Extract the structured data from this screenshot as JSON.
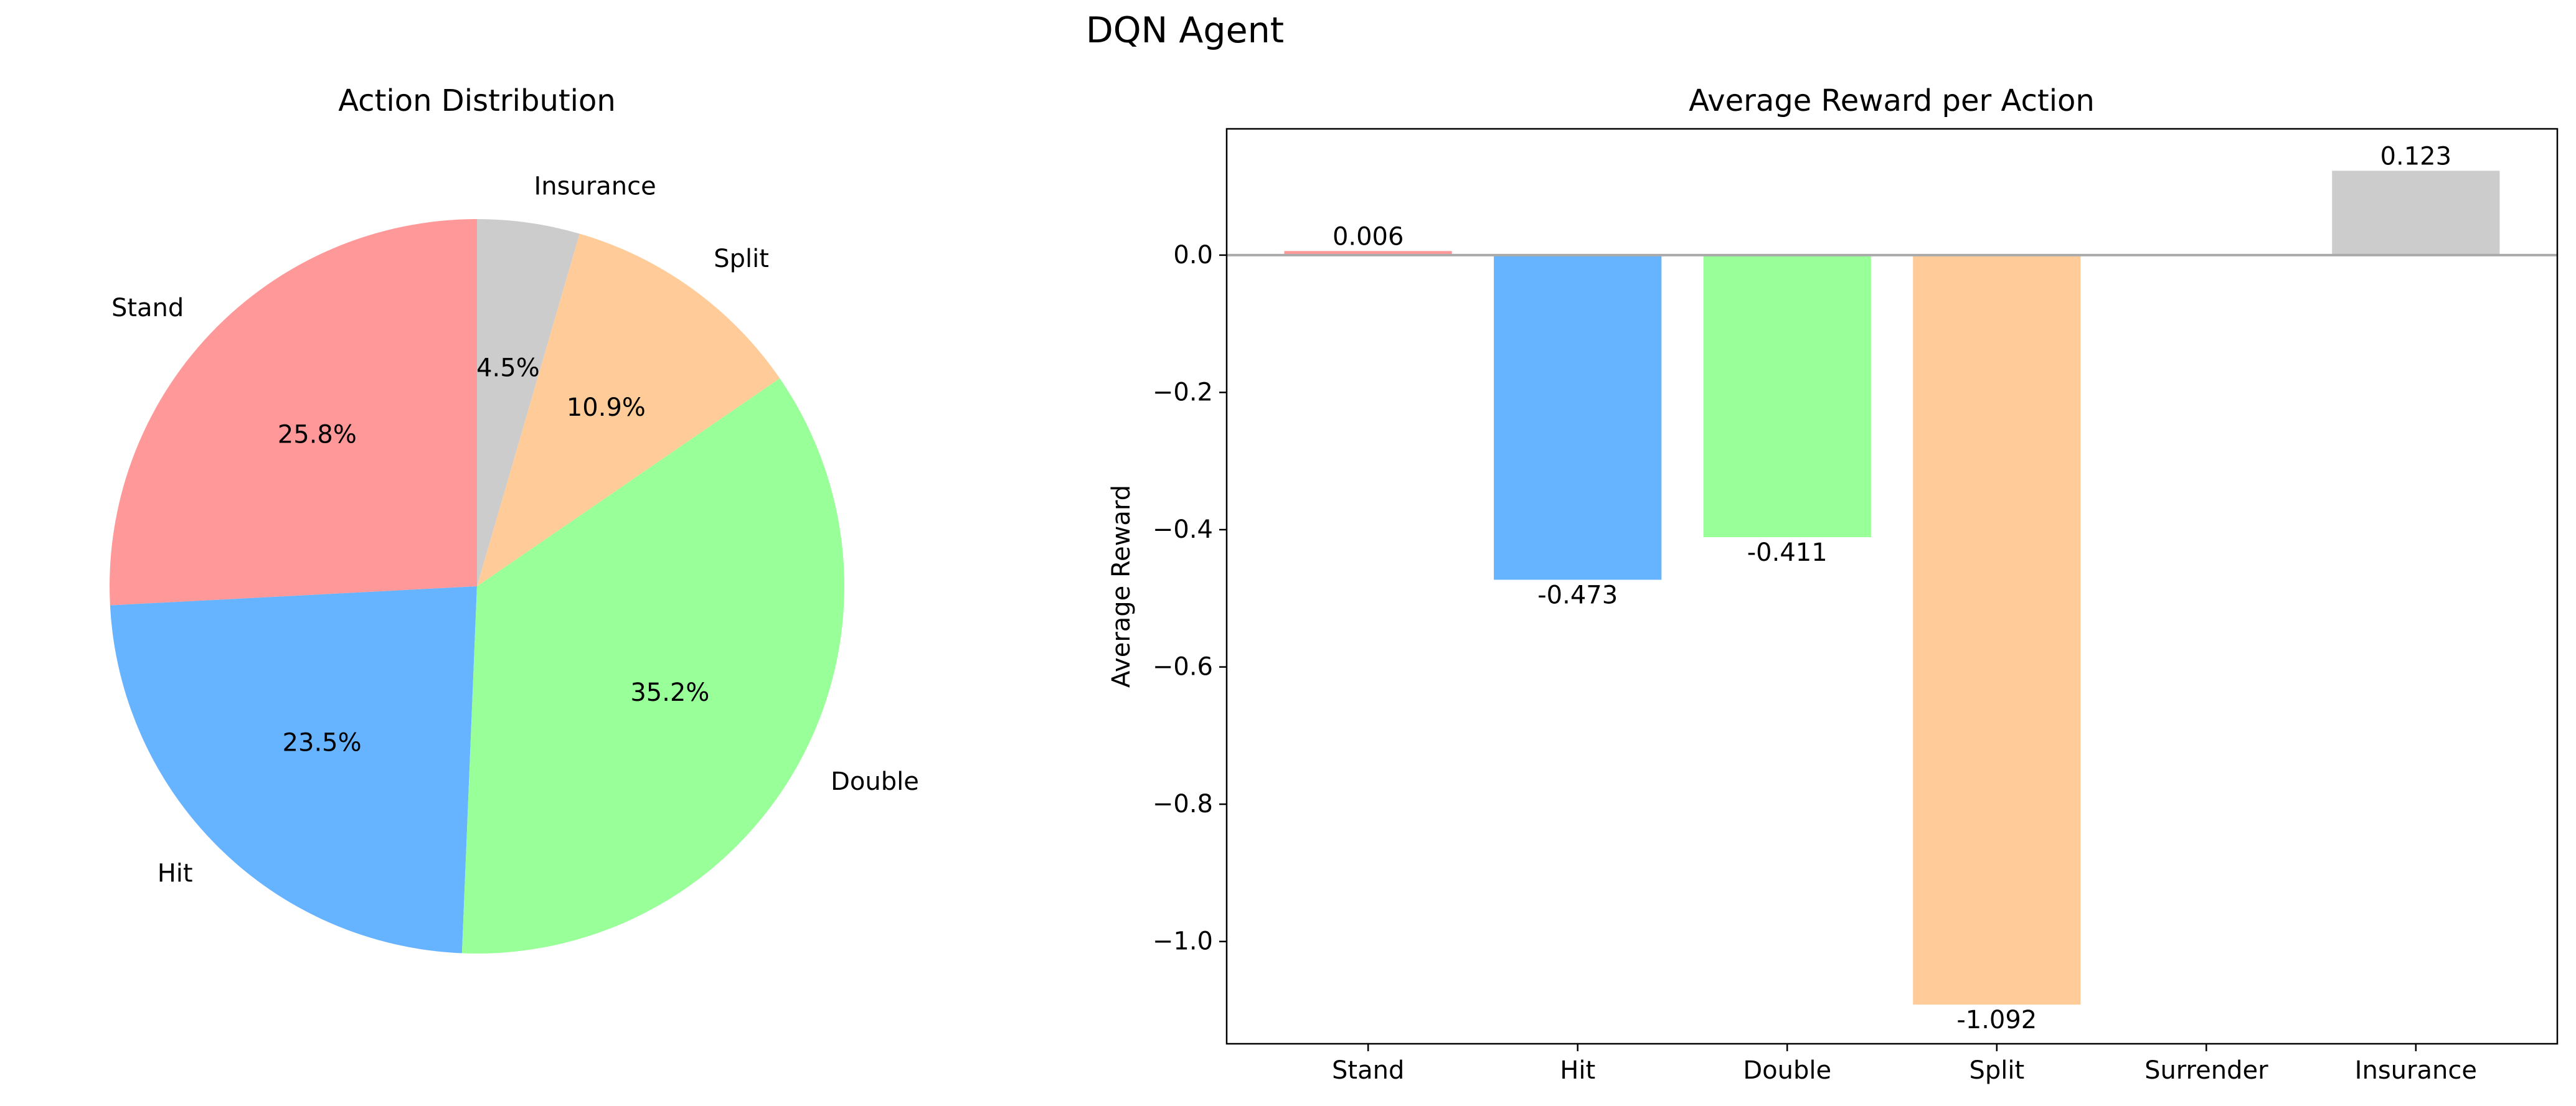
{
  "figure": {
    "title": "DQN Agent"
  },
  "chart_data": [
    {
      "type": "pie",
      "title": "Action Distribution",
      "labels": [
        "Stand",
        "Hit",
        "Double",
        "Split",
        "Insurance"
      ],
      "values": [
        25.8,
        23.5,
        35.2,
        10.9,
        4.5
      ],
      "pct_labels": [
        "25.8%",
        "23.5%",
        "35.2%",
        "10.9%",
        "4.5%"
      ],
      "colors": [
        "#ff9999",
        "#66b3ff",
        "#99ff99",
        "#ffcc99",
        "#cccccc"
      ],
      "start_angle_deg": 90,
      "direction": "counterclockwise"
    },
    {
      "type": "bar",
      "title": "Average Reward per Action",
      "xlabel": "",
      "ylabel": "Average Reward",
      "categories": [
        "Stand",
        "Hit",
        "Double",
        "Split",
        "Surrender",
        "Insurance"
      ],
      "values": [
        0.006,
        -0.473,
        -0.411,
        -1.092,
        null,
        0.123
      ],
      "value_labels": [
        "0.006",
        "-0.473",
        "-0.411",
        "-1.092",
        "",
        "0.123"
      ],
      "colors": [
        "#ff9999",
        "#66b3ff",
        "#99ff99",
        "#ffcc99",
        "#ffffff",
        "#cccccc"
      ],
      "ylim": [
        -1.149,
        0.184
      ],
      "yticks": [
        0.0,
        -0.2,
        -0.4,
        -0.6,
        -0.8,
        -1.0
      ],
      "ytick_labels": [
        "0.0",
        "−0.2",
        "−0.4",
        "−0.6",
        "−0.8",
        "−1.0"
      ],
      "zero_line": true,
      "grid": false
    }
  ]
}
